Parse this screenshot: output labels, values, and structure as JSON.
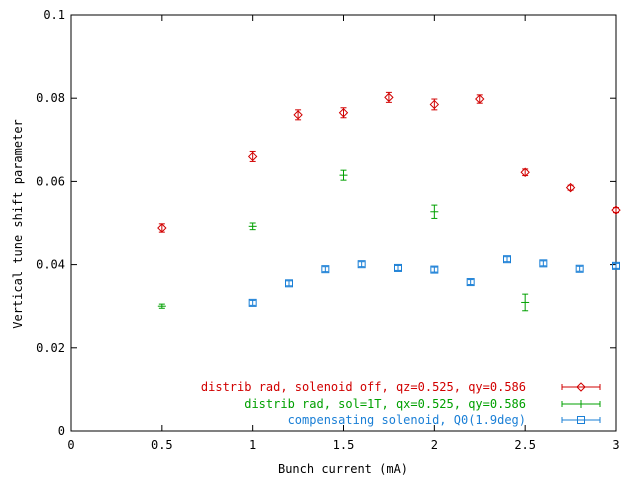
{
  "chart_data": {
    "type": "scatter",
    "xlabel": "Bunch current (mA)",
    "ylabel": "Vertical tune shift parameter",
    "xlim": [
      0,
      3
    ],
    "ylim": [
      0,
      0.1
    ],
    "xticks": [
      "0",
      "0.5",
      "1",
      "1.5",
      "2",
      "2.5",
      "3"
    ],
    "yticks": [
      "0",
      "0.02",
      "0.04",
      "0.06",
      "0.08",
      "0.1"
    ],
    "grid": false,
    "legend_position": "bottom-right",
    "series": [
      {
        "name": "distrib rad, solenoid off, qz=0.525, qy=0.586",
        "color": "#d10000",
        "marker": "diamond",
        "x": [
          0.5,
          1.0,
          1.25,
          1.5,
          1.75,
          2.0,
          2.25,
          2.5,
          2.75,
          3.0
        ],
        "y": [
          0.0488,
          0.066,
          0.076,
          0.0765,
          0.0802,
          0.0785,
          0.0798,
          0.0622,
          0.0585,
          0.0531
        ],
        "err": [
          0.001,
          0.0012,
          0.0012,
          0.0012,
          0.0012,
          0.0013,
          0.001,
          0.0008,
          0.0006,
          0.0006
        ]
      },
      {
        "name": "distrib rad, sol=1T, qx=0.525, qy=0.586",
        "color": "#00a000",
        "marker": "plus",
        "x": [
          0.5,
          1.0,
          1.5,
          2.0,
          2.5
        ],
        "y": [
          0.03,
          0.0492,
          0.0615,
          0.0527,
          0.0309
        ],
        "err": [
          0.0005,
          0.0008,
          0.0012,
          0.0016,
          0.002
        ]
      },
      {
        "name": "compensating solenoid, Q0(1.9deg)",
        "color": "#1a7fd6",
        "marker": "square",
        "x": [
          1.0,
          1.2,
          1.4,
          1.6,
          1.8,
          2.0,
          2.2,
          2.4,
          2.6,
          2.8,
          3.0
        ],
        "y": [
          0.0308,
          0.0355,
          0.0389,
          0.0401,
          0.0392,
          0.0388,
          0.0358,
          0.0413,
          0.0403,
          0.039,
          0.0397
        ],
        "err": [
          0.0006,
          0.0006,
          0.0006,
          0.0006,
          0.0006,
          0.0006,
          0.0006,
          0.0006,
          0.0006,
          0.0006,
          0.0006
        ]
      }
    ]
  }
}
